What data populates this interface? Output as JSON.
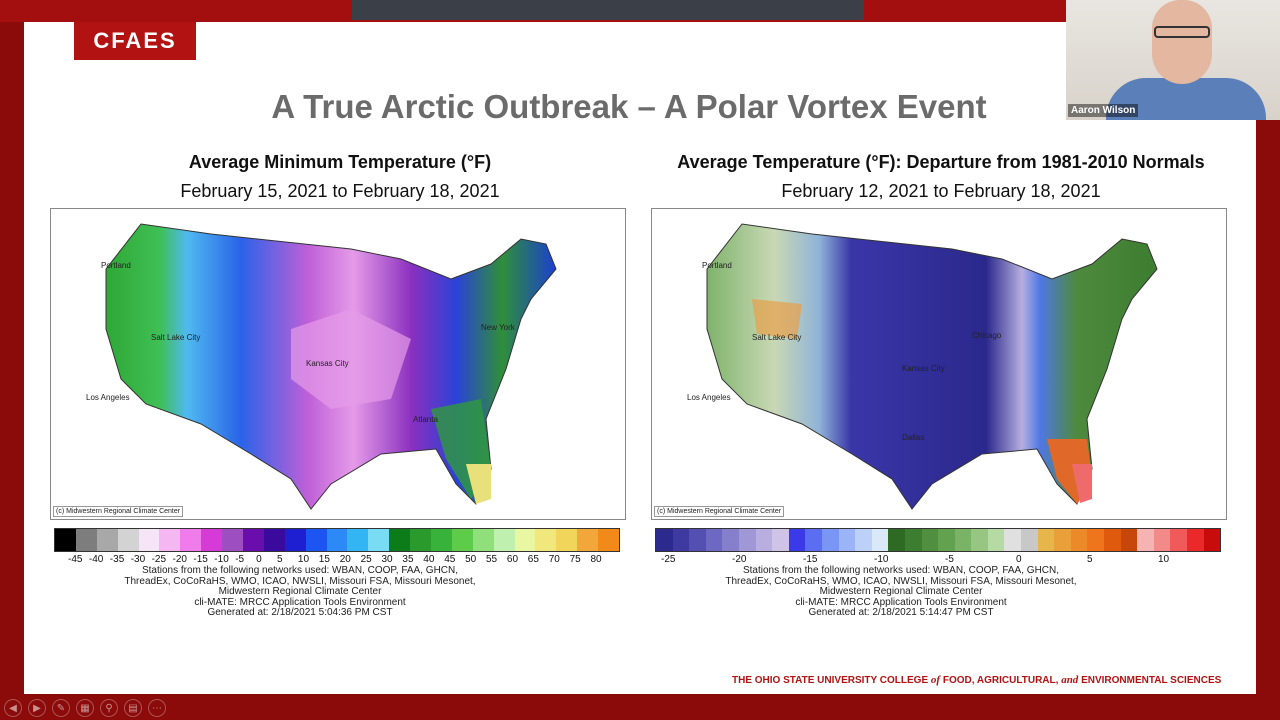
{
  "logo": "CFAES",
  "slide_title": "A True Arctic Outbreak – A Polar Vortex Event",
  "left_panel": {
    "title": "Average Minimum Temperature (°F)",
    "subtitle": "February 15, 2021 to February 18, 2021",
    "credit": "(c) Midwestern Regional Climate Center",
    "cities": [
      "Portland",
      "Salt Lake City",
      "Los Angeles",
      "Kansas City",
      "New York",
      "Atlanta"
    ],
    "legend_colors": [
      "#000000",
      "#7d7d7d",
      "#a8a8a8",
      "#d3d3d3",
      "#f6e5f6",
      "#f4b7f1",
      "#f07bea",
      "#d63bd8",
      "#9d4fc2",
      "#6a0dad",
      "#3a0a9c",
      "#1d1fd1",
      "#1d55f2",
      "#2b8af5",
      "#33b5f4",
      "#79dbf4",
      "#0c7c1b",
      "#2a9a2d",
      "#38b23a",
      "#5ccc4a",
      "#8fe07b",
      "#bff0b0",
      "#eaf7a2",
      "#f0e87d",
      "#f0d55a",
      "#f2a73a",
      "#f28a19"
    ],
    "tick_labels": [
      "-45",
      "-40",
      "-35",
      "-30",
      "-25",
      "-20",
      "-15",
      "-10",
      "-5",
      "0",
      "5",
      "10",
      "15",
      "20",
      "25",
      "30",
      "35",
      "40",
      "45",
      "50",
      "55",
      "60",
      "65",
      "70",
      "75",
      "80"
    ],
    "footnote": [
      "Stations from the following networks used: WBAN, COOP, FAA, GHCN,",
      "ThreadEx, CoCoRaHS, WMO, ICAO, NWSLI, Missouri FSA, Missouri Mesonet,",
      "Midwestern Regional Climate Center",
      "cli-MATE: MRCC Application Tools Environment",
      "Generated at: 2/18/2021 5:04:36 PM CST"
    ]
  },
  "right_panel": {
    "title": "Average Temperature (°F): Departure from 1981-2010 Normals",
    "subtitle": "February 12, 2021 to February 18, 2021",
    "credit": "(c) Midwestern Regional Climate Center",
    "cities": [
      "Portland",
      "Salt Lake City",
      "Los Angeles",
      "Kansas City",
      "Dallas",
      "Chicago"
    ],
    "legend_colors": [
      "#2c2a8e",
      "#3e3aa2",
      "#5450b1",
      "#6d68c1",
      "#8680cc",
      "#9f97d6",
      "#b8aedf",
      "#cfc3e7",
      "#3a3ae8",
      "#5b6ef2",
      "#7b95f5",
      "#9bb4f7",
      "#bcd0f8",
      "#dbe8fa",
      "#2f6a24",
      "#3d7d30",
      "#4f8f3f",
      "#62a150",
      "#7ab366",
      "#97c683",
      "#b6daa4",
      "#e0e0e0",
      "#c8c8c8",
      "#e6b64a",
      "#e9a03a",
      "#ec8a2a",
      "#ee751b",
      "#e05a0e",
      "#c7460a",
      "#f6b3b3",
      "#f38a8a",
      "#f05a5a",
      "#ea2a2a",
      "#c80c0c"
    ],
    "tick_labels": [
      "-25",
      "-20",
      "-15",
      "-10",
      "-5",
      "0",
      "5",
      "10"
    ],
    "footnote": [
      "Stations from the following networks used: WBAN, COOP, FAA, GHCN,",
      "ThreadEx, CoCoRaHS, WMO, ICAO, NWSLI, Missouri FSA, Missouri Mesonet,",
      "Midwestern Regional Climate Center",
      "cli-MATE: MRCC Application Tools Environment",
      "Generated at: 2/18/2021 5:14:47 PM CST"
    ]
  },
  "footer": {
    "part1": "THE OHIO STATE UNIVERSITY COLLEGE ",
    "of": "of",
    "part2": " FOOD, AGRICULTURAL, ",
    "and": "and",
    "part3": " ENVIRONMENTAL SCIENCES"
  },
  "webcam": {
    "name": "Aaron Wilson"
  }
}
